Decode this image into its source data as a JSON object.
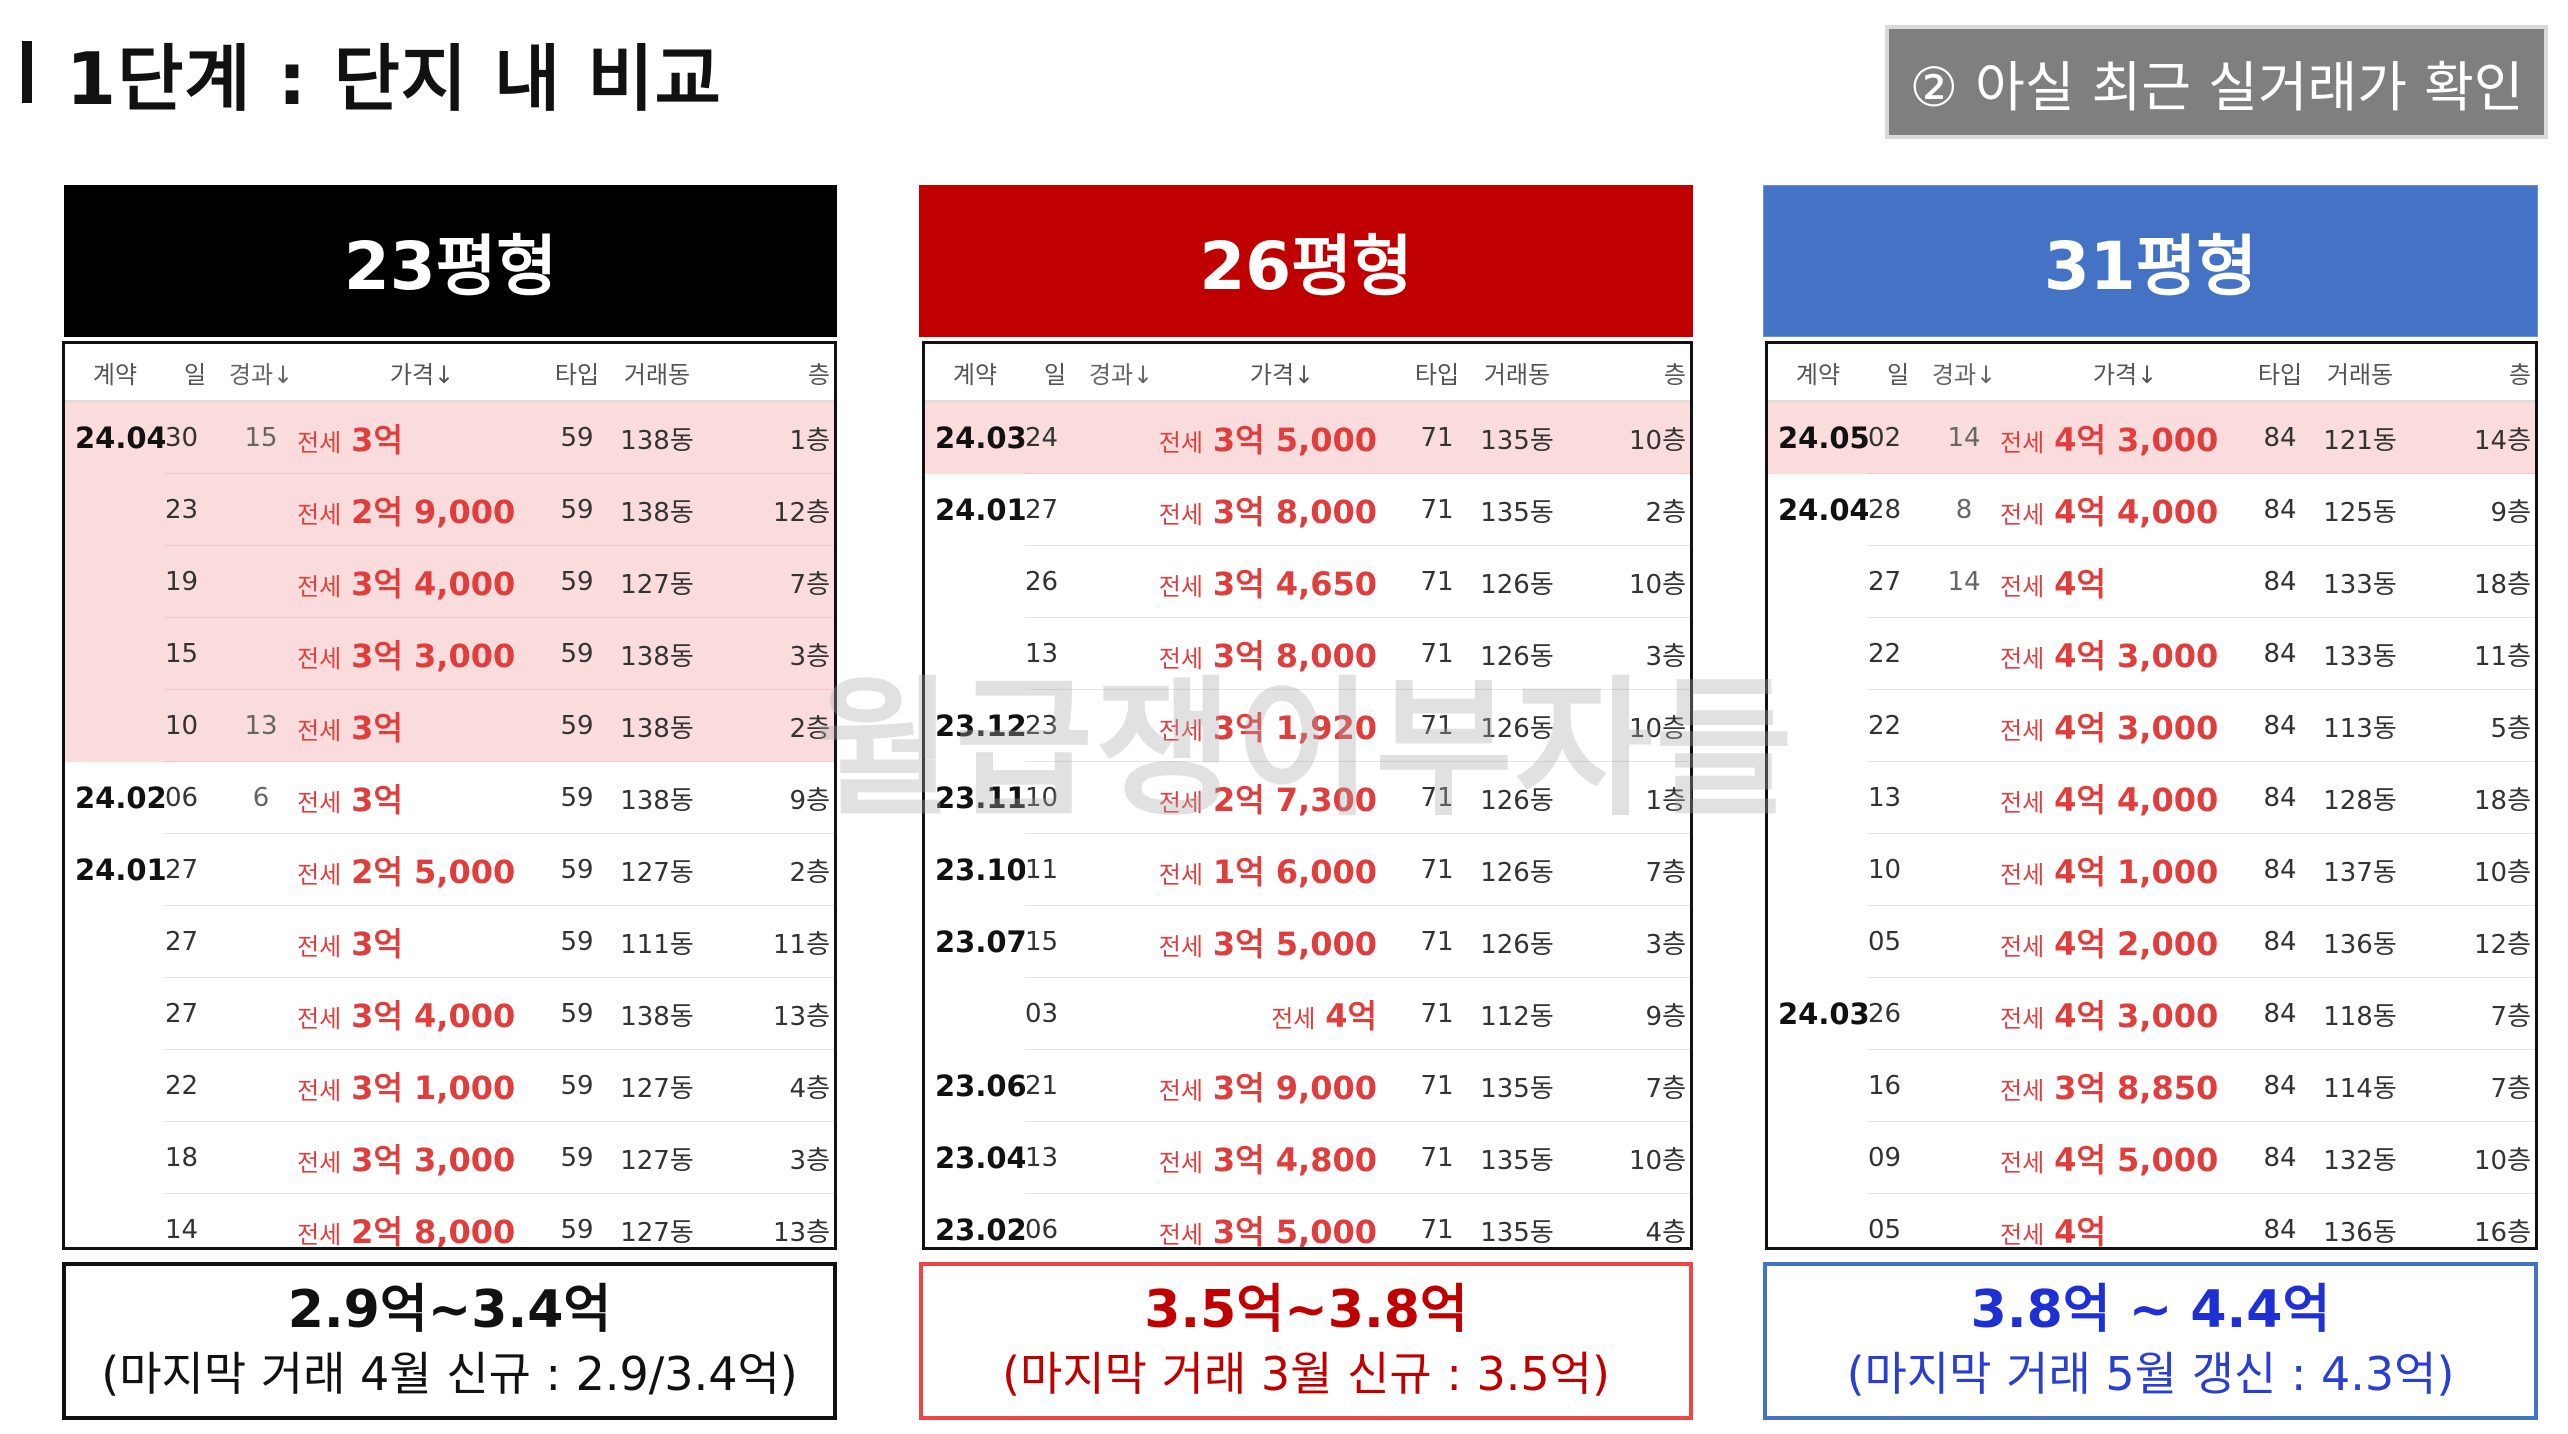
{
  "page": {
    "title": "1단계 : 단지 내 비교",
    "badge": "② 아실 최근 실거래가 확인",
    "watermark": "월급쟁이부자들"
  },
  "columns": {
    "contract": "계약",
    "day": "일",
    "elapsed": "경과↓",
    "price": "가격↓",
    "type": "타입",
    "dong": "거래동",
    "floor": "층"
  },
  "colors": {
    "panel1": "#000000",
    "panel2": "#c00000",
    "panel3": "#4472c4",
    "price_text": "#e03d3d",
    "highlight": "#fbdcdc"
  },
  "panels": [
    {
      "header": "23평형",
      "range": "2.9억~3.4억",
      "note": "(마지막 거래 4월 신규 : 2.9/3.4억)",
      "rows": [
        {
          "ym": "24.04",
          "d": "30",
          "el": "15",
          "pre": "전세",
          "price": "3억",
          "type": "59",
          "dong": "138동",
          "fl": "1층",
          "hl": true
        },
        {
          "ym": "",
          "d": "23",
          "el": "",
          "pre": "전세",
          "price": "2억 9,000",
          "type": "59",
          "dong": "138동",
          "fl": "12층",
          "hl": true
        },
        {
          "ym": "",
          "d": "19",
          "el": "",
          "pre": "전세",
          "price": "3억 4,000",
          "type": "59",
          "dong": "127동",
          "fl": "7층",
          "hl": true
        },
        {
          "ym": "",
          "d": "15",
          "el": "",
          "pre": "전세",
          "price": "3억 3,000",
          "type": "59",
          "dong": "138동",
          "fl": "3층",
          "hl": true
        },
        {
          "ym": "",
          "d": "10",
          "el": "13",
          "pre": "전세",
          "price": "3억",
          "type": "59",
          "dong": "138동",
          "fl": "2층",
          "hl": true
        },
        {
          "ym": "24.02",
          "d": "06",
          "el": "6",
          "pre": "전세",
          "price": "3억",
          "type": "59",
          "dong": "138동",
          "fl": "9층",
          "hl": false
        },
        {
          "ym": "24.01",
          "d": "27",
          "el": "",
          "pre": "전세",
          "price": "2억 5,000",
          "type": "59",
          "dong": "127동",
          "fl": "2층",
          "hl": false
        },
        {
          "ym": "",
          "d": "27",
          "el": "",
          "pre": "전세",
          "price": "3억",
          "type": "59",
          "dong": "111동",
          "fl": "11층",
          "hl": false
        },
        {
          "ym": "",
          "d": "27",
          "el": "",
          "pre": "전세",
          "price": "3억 4,000",
          "type": "59",
          "dong": "138동",
          "fl": "13층",
          "hl": false
        },
        {
          "ym": "",
          "d": "22",
          "el": "",
          "pre": "전세",
          "price": "3억 1,000",
          "type": "59",
          "dong": "127동",
          "fl": "4층",
          "hl": false
        },
        {
          "ym": "",
          "d": "18",
          "el": "",
          "pre": "전세",
          "price": "3억 3,000",
          "type": "59",
          "dong": "127동",
          "fl": "3층",
          "hl": false
        },
        {
          "ym": "",
          "d": "14",
          "el": "",
          "pre": "전세",
          "price": "2억 8,000",
          "type": "59",
          "dong": "127동",
          "fl": "13층",
          "hl": false
        }
      ]
    },
    {
      "header": "26평형",
      "range": "3.5억~3.8억",
      "note": "(마지막 거래 3월 신규 : 3.5억)",
      "rows": [
        {
          "ym": "24.03",
          "d": "24",
          "el": "",
          "pre": "전세",
          "price": "3억 5,000",
          "type": "71",
          "dong": "135동",
          "fl": "10층",
          "hl": true
        },
        {
          "ym": "24.01",
          "d": "27",
          "el": "",
          "pre": "전세",
          "price": "3억 8,000",
          "type": "71",
          "dong": "135동",
          "fl": "2층",
          "hl": false
        },
        {
          "ym": "",
          "d": "26",
          "el": "",
          "pre": "전세",
          "price": "3억 4,650",
          "type": "71",
          "dong": "126동",
          "fl": "10층",
          "hl": false
        },
        {
          "ym": "",
          "d": "13",
          "el": "",
          "pre": "전세",
          "price": "3억 8,000",
          "type": "71",
          "dong": "126동",
          "fl": "3층",
          "hl": false
        },
        {
          "ym": "23.12",
          "d": "23",
          "el": "",
          "pre": "전세",
          "price": "3억 1,920",
          "type": "71",
          "dong": "126동",
          "fl": "10층",
          "hl": false
        },
        {
          "ym": "23.11",
          "d": "10",
          "el": "",
          "pre": "전세",
          "price": "2억 7,300",
          "type": "71",
          "dong": "126동",
          "fl": "1층",
          "hl": false
        },
        {
          "ym": "23.10",
          "d": "11",
          "el": "",
          "pre": "전세",
          "price": "1억 6,000",
          "type": "71",
          "dong": "126동",
          "fl": "7층",
          "hl": false
        },
        {
          "ym": "23.07",
          "d": "15",
          "el": "",
          "pre": "전세",
          "price": "3억 5,000",
          "type": "71",
          "dong": "126동",
          "fl": "3층",
          "hl": false
        },
        {
          "ym": "",
          "d": "03",
          "el": "",
          "pre": "전세",
          "price": "4억",
          "type": "71",
          "dong": "112동",
          "fl": "9층",
          "hl": false
        },
        {
          "ym": "23.06",
          "d": "21",
          "el": "",
          "pre": "전세",
          "price": "3억 9,000",
          "type": "71",
          "dong": "135동",
          "fl": "7층",
          "hl": false
        },
        {
          "ym": "23.04",
          "d": "13",
          "el": "",
          "pre": "전세",
          "price": "3억 4,800",
          "type": "71",
          "dong": "135동",
          "fl": "10층",
          "hl": false
        },
        {
          "ym": "23.02",
          "d": "06",
          "el": "",
          "pre": "전세",
          "price": "3억 5,000",
          "type": "71",
          "dong": "135동",
          "fl": "4층",
          "hl": false
        }
      ]
    },
    {
      "header": "31평형",
      "range": "3.8억 ~ 4.4억",
      "note": "(마지막 거래 5월 갱신 : 4.3억)",
      "rows": [
        {
          "ym": "24.05",
          "d": "02",
          "el": "14",
          "pre": "전세",
          "price": "4억 3,000",
          "type": "84",
          "dong": "121동",
          "fl": "14층",
          "hl": true
        },
        {
          "ym": "24.04",
          "d": "28",
          "el": "8",
          "pre": "전세",
          "price": "4억 4,000",
          "type": "84",
          "dong": "125동",
          "fl": "9층",
          "hl": false
        },
        {
          "ym": "",
          "d": "27",
          "el": "14",
          "pre": "전세",
          "price": "4억",
          "type": "84",
          "dong": "133동",
          "fl": "18층",
          "hl": false
        },
        {
          "ym": "",
          "d": "22",
          "el": "",
          "pre": "전세",
          "price": "4억 3,000",
          "type": "84",
          "dong": "133동",
          "fl": "11층",
          "hl": false
        },
        {
          "ym": "",
          "d": "22",
          "el": "",
          "pre": "전세",
          "price": "4억 3,000",
          "type": "84",
          "dong": "113동",
          "fl": "5층",
          "hl": false
        },
        {
          "ym": "",
          "d": "13",
          "el": "",
          "pre": "전세",
          "price": "4억 4,000",
          "type": "84",
          "dong": "128동",
          "fl": "18층",
          "hl": false
        },
        {
          "ym": "",
          "d": "10",
          "el": "",
          "pre": "전세",
          "price": "4억 1,000",
          "type": "84",
          "dong": "137동",
          "fl": "10층",
          "hl": false
        },
        {
          "ym": "",
          "d": "05",
          "el": "",
          "pre": "전세",
          "price": "4억 2,000",
          "type": "84",
          "dong": "136동",
          "fl": "12층",
          "hl": false
        },
        {
          "ym": "24.03",
          "d": "26",
          "el": "",
          "pre": "전세",
          "price": "4억 3,000",
          "type": "84",
          "dong": "118동",
          "fl": "7층",
          "hl": false
        },
        {
          "ym": "",
          "d": "16",
          "el": "",
          "pre": "전세",
          "price": "3억 8,850",
          "type": "84",
          "dong": "114동",
          "fl": "7층",
          "hl": false
        },
        {
          "ym": "",
          "d": "09",
          "el": "",
          "pre": "전세",
          "price": "4억 5,000",
          "type": "84",
          "dong": "132동",
          "fl": "10층",
          "hl": false
        },
        {
          "ym": "",
          "d": "05",
          "el": "",
          "pre": "전세",
          "price": "4억",
          "type": "84",
          "dong": "136동",
          "fl": "16층",
          "hl": false
        }
      ]
    }
  ]
}
